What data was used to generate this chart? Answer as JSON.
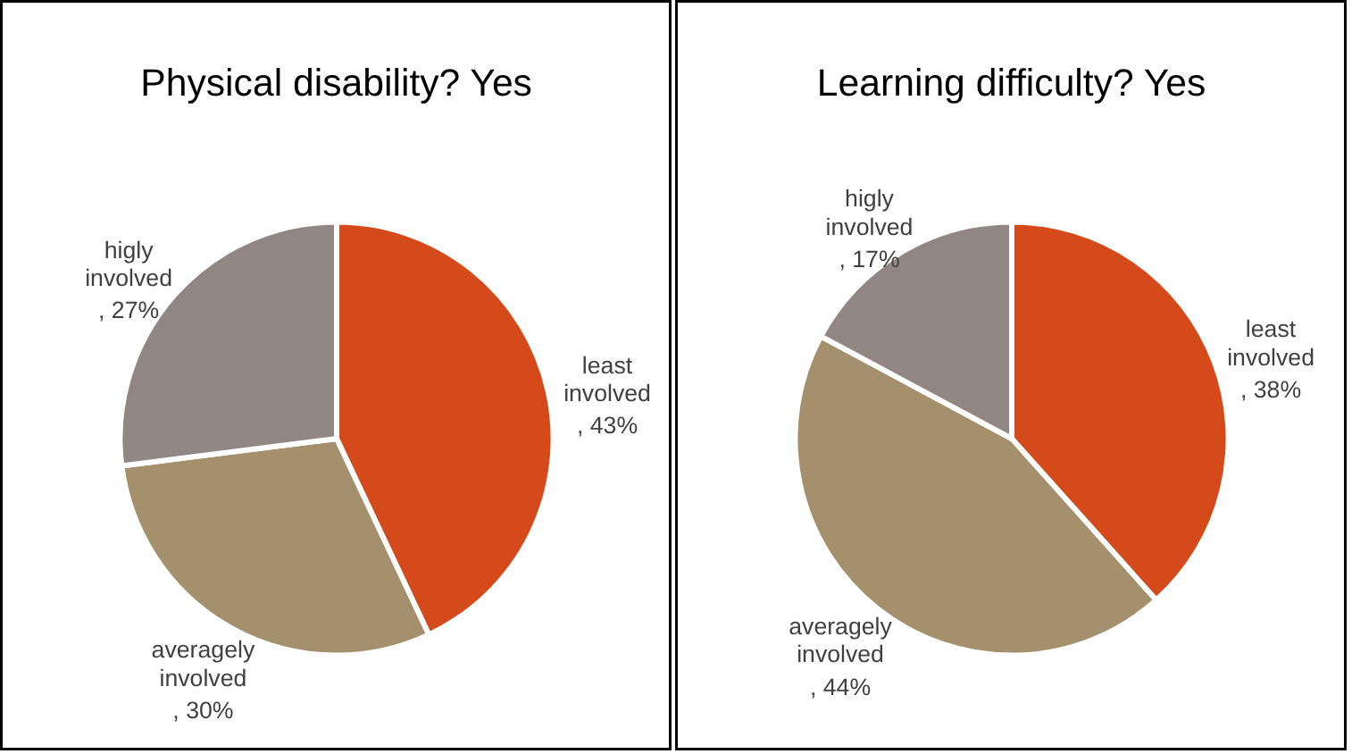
{
  "chart_data": [
    {
      "type": "pie",
      "title": "Physical disability? Yes",
      "categories": [
        "least involved",
        "averagely involved",
        "higly involved"
      ],
      "values": [
        43,
        30,
        27
      ],
      "colors": [
        "#d44a1a",
        "#a5906e",
        "#918683"
      ],
      "value_labels": [
        ", 43%",
        ", 30%",
        ", 27%"
      ]
    },
    {
      "type": "pie",
      "title": "Learning difficulty? Yes",
      "categories": [
        "least involved",
        "averagely involved",
        "higly involved"
      ],
      "values": [
        38,
        44,
        17
      ],
      "colors": [
        "#d44a1a",
        "#a5906e",
        "#918683"
      ],
      "value_labels": [
        ", 38%",
        ", 44%",
        ", 17%"
      ]
    }
  ]
}
